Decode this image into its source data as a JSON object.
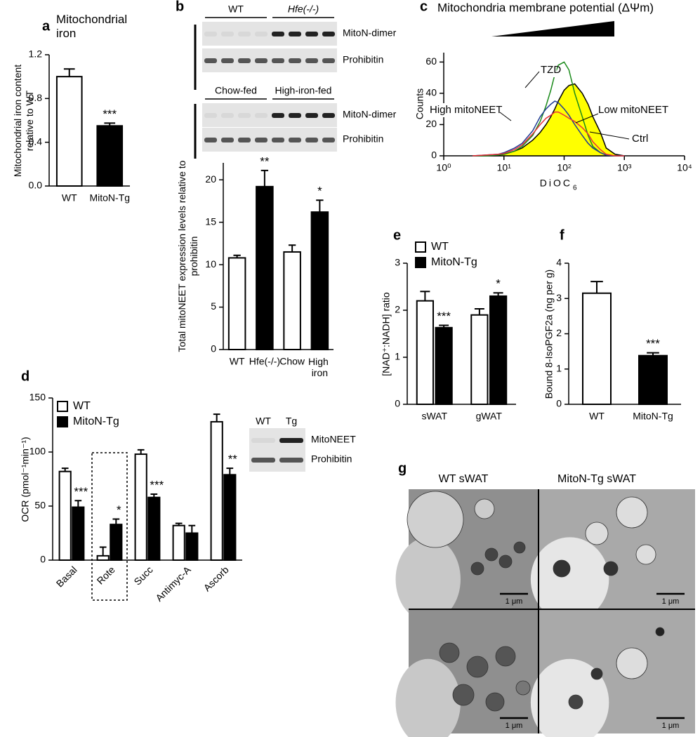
{
  "chart_data": [
    {
      "panel": "a",
      "type": "bar",
      "title": "Mitochondrial iron",
      "ylabel": "Mitochondrial iron content relative to WT",
      "categories": [
        "WT",
        "MitoN-Tg"
      ],
      "values": [
        1.0,
        0.55
      ],
      "errors": [
        0.07,
        0.025
      ],
      "colors": [
        "#ffffff",
        "#000000"
      ],
      "significance": [
        null,
        "***"
      ],
      "ylim": [
        0,
        1.2
      ],
      "yticks": [
        {
          "value": 0,
          "label": "0.0"
        },
        0.4,
        0.8,
        1.2
      ]
    },
    {
      "panel": "b",
      "type": "bar",
      "ylabel": "Total mitoNEET expression levels relative to prohibitin",
      "categories": [
        "WT",
        "Hfe(-/-)",
        "Chow",
        "High iron"
      ],
      "values": [
        10.8,
        19.2,
        11.5,
        16.2
      ],
      "errors": [
        0.3,
        1.9,
        0.8,
        1.4
      ],
      "colors": [
        "#ffffff",
        "#000000",
        "#ffffff",
        "#000000"
      ],
      "significance": [
        null,
        "**",
        null,
        "*"
      ],
      "ylim": [
        0,
        22
      ],
      "yticks": [
        0,
        5,
        10,
        15,
        20
      ]
    },
    {
      "panel": "c",
      "type": "line",
      "title": "Mitochondria membrane potential (ΔΨm)",
      "xlabel": "DiOC",
      "xlabel_sub": "6",
      "ylabel": "Counts",
      "xscale": "log",
      "x": [
        3,
        5,
        8,
        10,
        15,
        20,
        30,
        40,
        50,
        60,
        70,
        80,
        100,
        120,
        150,
        200,
        250,
        300,
        400,
        500,
        700,
        1000
      ],
      "series": [
        {
          "name": "Ctrl",
          "color": "#000000",
          "fill": "#ffff00",
          "values": [
            0,
            0,
            0.5,
            1,
            3,
            5,
            10,
            15,
            20,
            25,
            30,
            35,
            42,
            45,
            46,
            40,
            33,
            25,
            15,
            5,
            1,
            0
          ]
        },
        {
          "name": "TZD",
          "color": "#1a8a1a",
          "values": [
            0,
            0,
            0.5,
            1,
            3,
            6,
            13,
            22,
            32,
            42,
            52,
            58,
            60,
            55,
            40,
            25,
            13,
            6,
            2,
            0.5,
            0,
            0
          ]
        },
        {
          "name": "High mitoNEET",
          "color": "#1f3a93",
          "values": [
            0,
            0.5,
            1,
            2,
            5,
            8,
            16,
            25,
            30,
            33,
            35,
            34,
            30,
            26,
            20,
            13,
            8,
            5,
            2,
            0.5,
            0,
            0
          ]
        },
        {
          "name": "Low mitoNEET",
          "color": "#e8313a",
          "values": [
            0,
            0.5,
            1,
            1.5,
            4,
            7,
            14,
            20,
            24,
            26,
            28,
            28,
            26,
            24,
            22,
            18,
            14,
            9,
            4,
            1,
            0,
            0
          ]
        }
      ],
      "xlim": [
        1,
        10000
      ],
      "xticks": [
        {
          "value": 1,
          "label": "10⁰"
        },
        {
          "value": 10,
          "label": "10¹"
        },
        {
          "value": 100,
          "label": "10²"
        },
        {
          "value": 1000,
          "label": "10³"
        },
        {
          "value": 10000,
          "label": "10⁴"
        }
      ],
      "ylim": [
        0,
        66
      ],
      "yticks": [
        0,
        20,
        40,
        60
      ]
    },
    {
      "panel": "d",
      "type": "grouped_bar",
      "ylabel": "OCR (pmol⁻¹min⁻¹)",
      "legend": "top-left",
      "categories": [
        "Basal",
        "Rote",
        "Succ",
        "Antimyc-A",
        "Ascorb"
      ],
      "series": [
        {
          "name": "WT",
          "color": "#ffffff",
          "values": [
            82,
            4,
            98,
            32,
            128
          ],
          "errors": [
            3,
            8,
            4,
            2,
            7
          ],
          "significance": [
            null,
            null,
            null,
            null,
            null
          ]
        },
        {
          "name": "MitoN-Tg",
          "color": "#000000",
          "values": [
            49,
            33,
            58,
            25,
            79
          ],
          "errors": [
            6,
            5,
            3,
            7,
            6
          ],
          "significance": [
            "***",
            "*",
            "***",
            null,
            "**"
          ]
        }
      ],
      "ylim": [
        0,
        150
      ],
      "yticks": [
        0,
        50,
        100,
        150
      ]
    },
    {
      "panel": "e",
      "type": "grouped_bar",
      "ylabel": "[NAD⁺:NADH] ratio",
      "legend": "top-left",
      "categories": [
        "sWAT",
        "gWAT"
      ],
      "series": [
        {
          "name": "WT",
          "color": "#ffffff",
          "values": [
            2.2,
            1.9
          ],
          "errors": [
            0.2,
            0.13
          ],
          "significance": [
            null,
            null
          ]
        },
        {
          "name": "MitoN-Tg",
          "color": "#000000",
          "values": [
            1.63,
            2.3
          ],
          "errors": [
            0.05,
            0.07
          ],
          "significance": [
            "***",
            "*"
          ]
        }
      ],
      "ylim": [
        0,
        3
      ],
      "yticks": [
        0,
        1,
        2,
        3
      ]
    },
    {
      "panel": "f",
      "type": "bar",
      "ylabel": "Bound 8-IsoPGF2a (ng per g)",
      "categories": [
        "WT",
        "MitoN-Tg"
      ],
      "values": [
        3.15,
        1.38
      ],
      "errors": [
        0.33,
        0.08
      ],
      "colors": [
        "#ffffff",
        "#000000"
      ],
      "significance": [
        null,
        "***"
      ],
      "ylim": [
        0,
        4
      ],
      "yticks": [
        0,
        1,
        2,
        3,
        4
      ]
    }
  ],
  "blots": {
    "top": {
      "groups": [
        "WT",
        "Hfe(-/-)"
      ],
      "rows": [
        "MitoN-dimer",
        "Prohibitin"
      ]
    },
    "middle": {
      "groups": [
        "Chow-fed",
        "High-iron-fed"
      ],
      "rows": [
        "MitoN-dimer",
        "Prohibitin"
      ]
    },
    "inset": {
      "groups": [
        "WT",
        "Tg"
      ],
      "rows": [
        "MitoNEET",
        "Prohibitin"
      ]
    }
  },
  "micrographs": {
    "panel": "g",
    "columns": [
      "WT sWAT",
      "MitoN-Tg sWAT"
    ],
    "scale_labels": [
      "1 μm",
      "1 μm",
      "1 μm",
      "1 μm"
    ]
  }
}
